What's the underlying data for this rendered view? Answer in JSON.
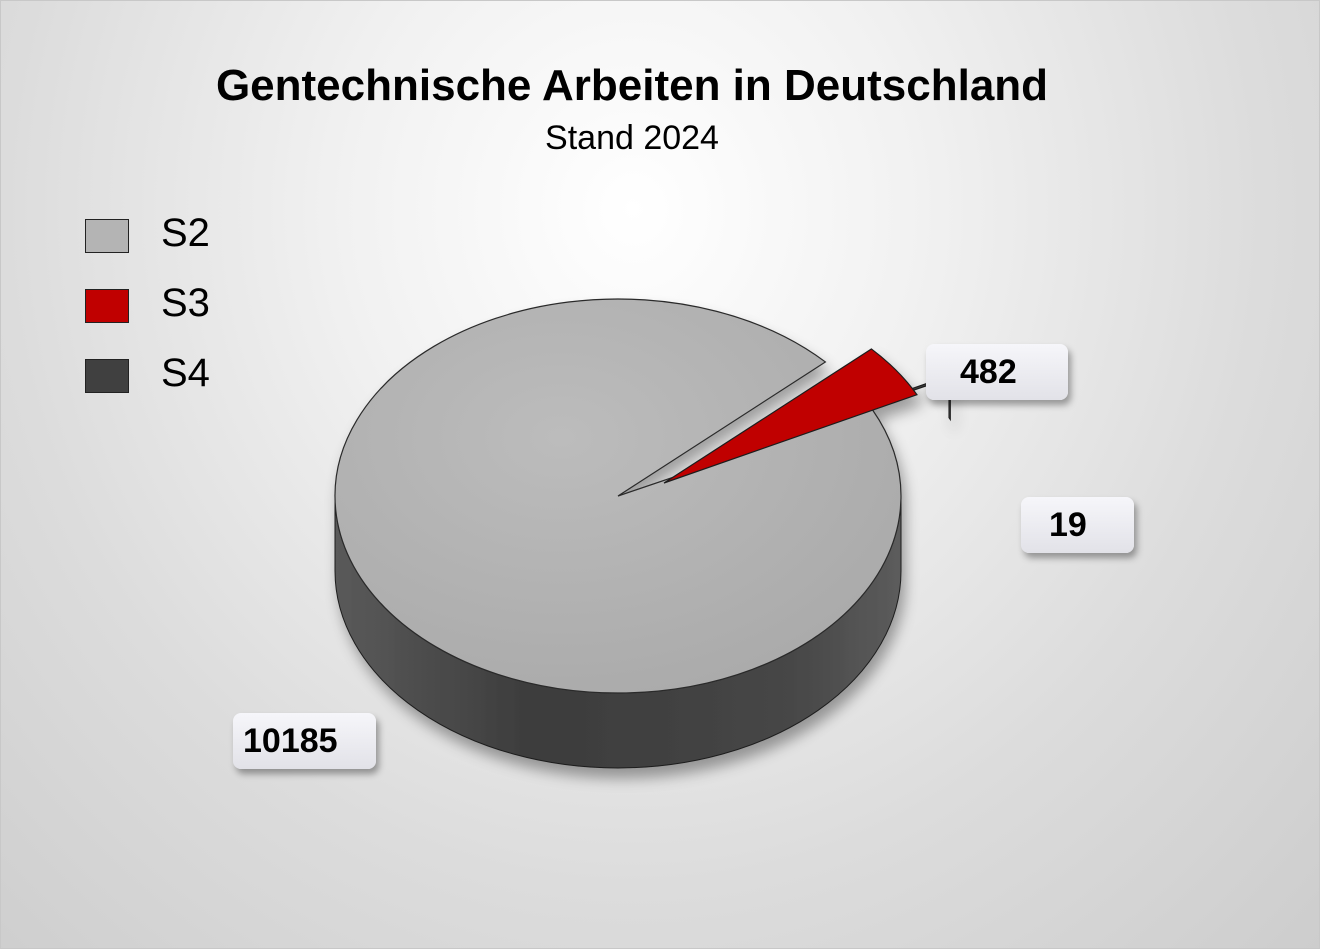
{
  "chart_data": {
    "type": "pie",
    "title": "Gentechnische Arbeiten in Deutschland",
    "subtitle": "Stand 2024",
    "categories": [
      "S2",
      "S3",
      "S4"
    ],
    "values": [
      10185,
      482,
      19
    ],
    "data_labels": [
      "10185",
      "482",
      "19"
    ],
    "colors": [
      "#b4b4b4",
      "#c00000",
      "#404040"
    ],
    "legend_position": "top-left",
    "style": "3d-exploded"
  }
}
